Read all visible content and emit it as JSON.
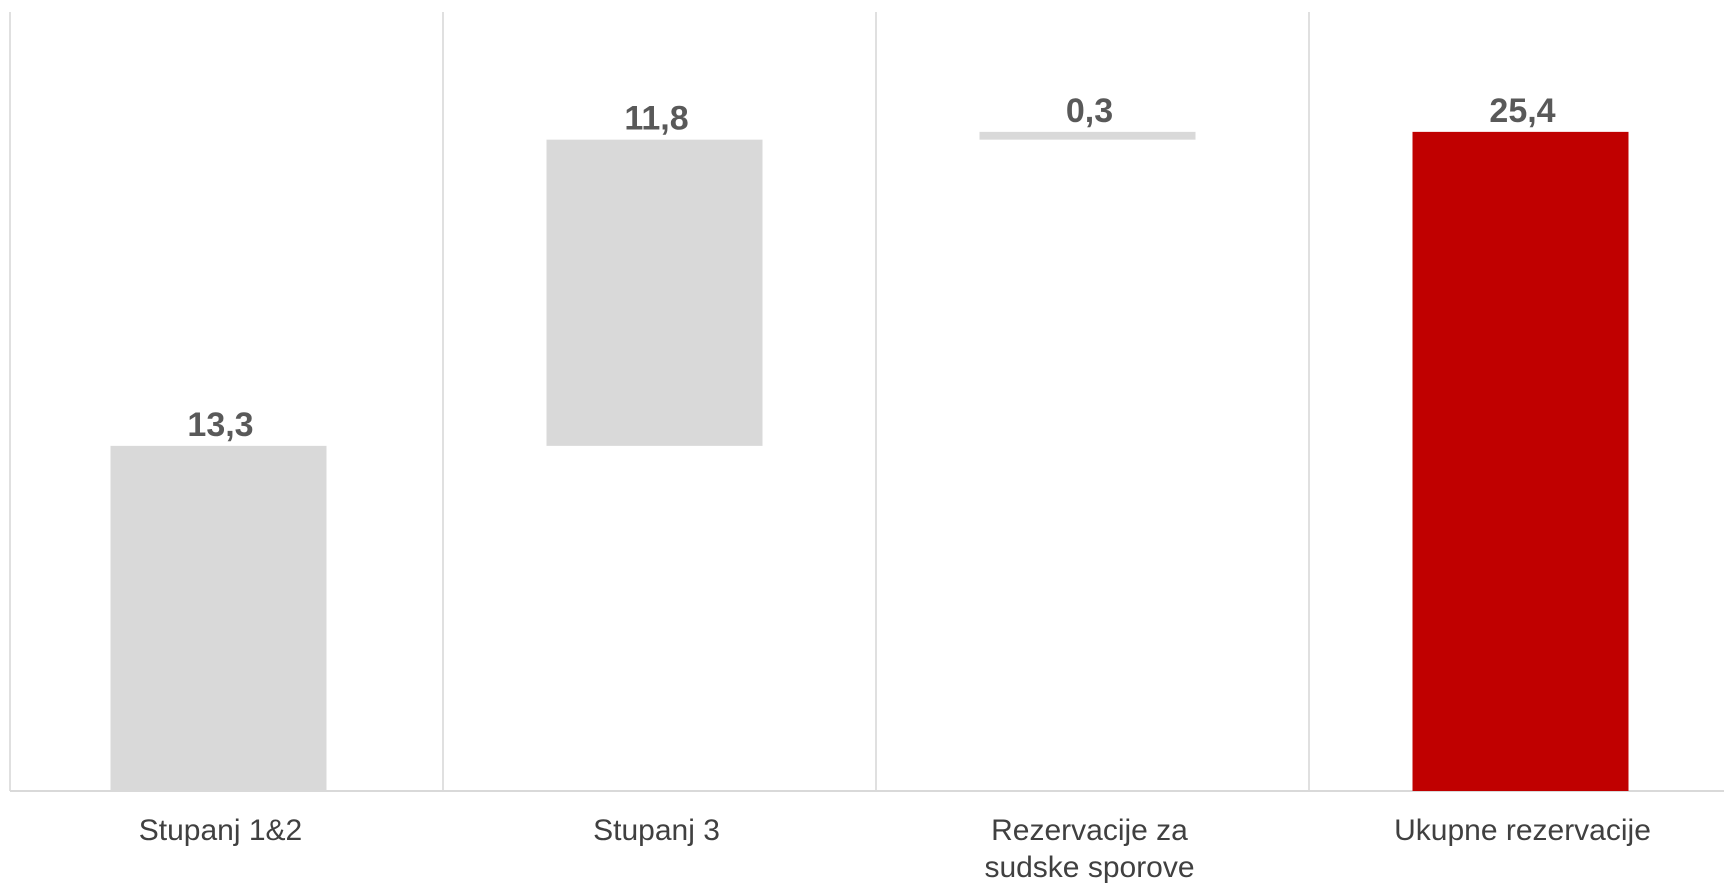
{
  "chart_data": {
    "type": "bar",
    "subtype": "waterfall",
    "categories": [
      "Stupanj 1&2",
      "Stupanj 3",
      "Rezervacije za sudske sporove",
      "Ukupne rezervacije"
    ],
    "category_label_lines": [
      [
        "Stupanj 1&2"
      ],
      [
        "Stupanj 3"
      ],
      [
        "Rezervacije za",
        "sudske sporove"
      ],
      [
        "Ukupne rezervacije"
      ]
    ],
    "values": [
      13.3,
      11.8,
      0.3,
      25.4
    ],
    "value_labels": [
      "13,3",
      "11,8",
      "0,3",
      "25,4"
    ],
    "bar_roles": [
      "increment",
      "increment",
      "increment",
      "total"
    ],
    "title": "",
    "xlabel": "",
    "ylabel": "",
    "ylim": [
      0,
      30
    ],
    "grid": "vertical separators between categories",
    "legend": "none",
    "colors": {
      "increment": "#d9d9d9",
      "total": "#c00000",
      "gridline": "#e0e0e0",
      "axis": "#d9d9d9",
      "value_label": "#595959",
      "category_label": "#404040"
    }
  }
}
